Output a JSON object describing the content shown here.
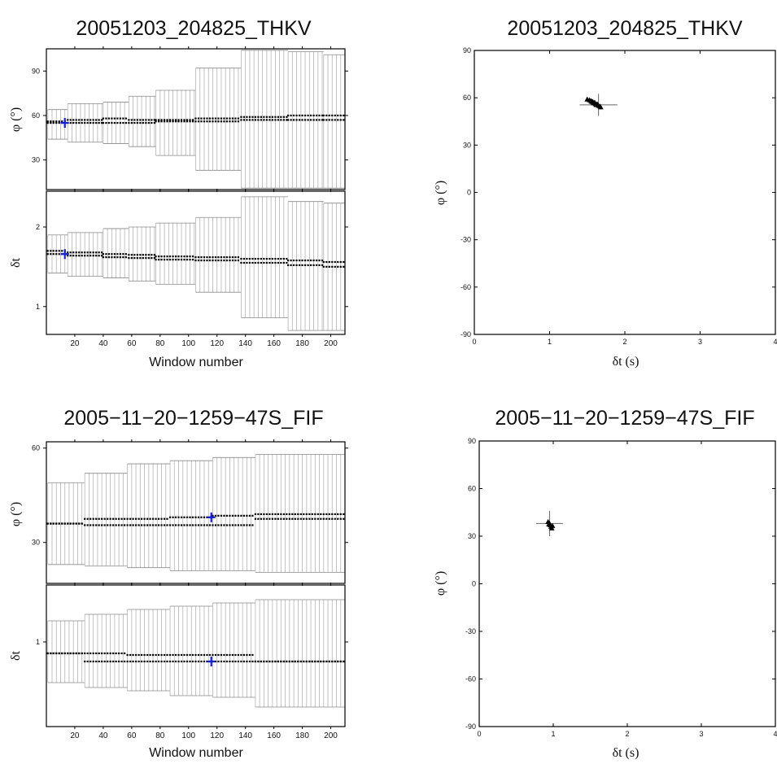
{
  "chart_data": [
    {
      "id": "p1",
      "type": "scatter",
      "title": "20051203_204825_THKV",
      "xlabel": "Window number",
      "xlim": [
        0,
        210
      ],
      "xticks": [
        20,
        40,
        60,
        80,
        100,
        120,
        140,
        160,
        180,
        200
      ],
      "phi": {
        "ylabel": "φ (°)",
        "ylim": [
          10,
          105
        ],
        "yticks": [
          30,
          60,
          90
        ],
        "segments": [
          {
            "x": [
              1,
              15
            ],
            "mean": [
              55,
              56
            ],
            "low": 44,
            "high": 64
          },
          {
            "x": [
              15,
              40
            ],
            "mean": [
              55,
              57
            ],
            "low": 42,
            "high": 68
          },
          {
            "x": [
              40,
              58
            ],
            "mean": [
              55,
              58
            ],
            "low": 41,
            "high": 69
          },
          {
            "x": [
              58,
              77
            ],
            "mean": [
              55,
              57
            ],
            "low": 39,
            "high": 73
          },
          {
            "x": [
              77,
              105
            ],
            "mean": [
              56,
              57
            ],
            "low": 33,
            "high": 77
          },
          {
            "x": [
              105,
              137
            ],
            "mean": [
              56,
              58
            ],
            "low": 23,
            "high": 92
          },
          {
            "x": [
              137,
              170
            ],
            "mean": [
              57,
              59
            ],
            "low": 11,
            "high": 104
          },
          {
            "x": [
              170,
              195
            ],
            "mean": [
              57,
              60
            ],
            "low": 11,
            "high": 103
          },
          {
            "x": [
              195,
              210
            ],
            "mean": [
              57,
              60
            ],
            "low": 11,
            "high": 101
          }
        ],
        "best": {
          "x": 13,
          "y": 55
        }
      },
      "dt": {
        "ylabel": "δt",
        "ylim": [
          0.65,
          2.45
        ],
        "yticks": [
          1,
          2
        ],
        "segments": [
          {
            "x": [
              1,
              15
            ],
            "mean": [
              1.66,
              1.7
            ],
            "low": 1.42,
            "high": 1.9
          },
          {
            "x": [
              15,
              40
            ],
            "mean": [
              1.64,
              1.68
            ],
            "low": 1.38,
            "high": 1.93
          },
          {
            "x": [
              40,
              58
            ],
            "mean": [
              1.62,
              1.66
            ],
            "low": 1.36,
            "high": 1.98
          },
          {
            "x": [
              58,
              77
            ],
            "mean": [
              1.61,
              1.65
            ],
            "low": 1.32,
            "high": 2.0
          },
          {
            "x": [
              77,
              105
            ],
            "mean": [
              1.59,
              1.63
            ],
            "low": 1.28,
            "high": 2.05
          },
          {
            "x": [
              105,
              137
            ],
            "mean": [
              1.58,
              1.62
            ],
            "low": 1.18,
            "high": 2.12
          },
          {
            "x": [
              137,
              170
            ],
            "mean": [
              1.55,
              1.6
            ],
            "low": 0.86,
            "high": 2.38
          },
          {
            "x": [
              170,
              195
            ],
            "mean": [
              1.52,
              1.58
            ],
            "low": 0.7,
            "high": 2.32
          },
          {
            "x": [
              195,
              210
            ],
            "mean": [
              1.5,
              1.56
            ],
            "low": 0.7,
            "high": 2.3
          }
        ],
        "best": {
          "x": 13,
          "y": 1.66
        }
      }
    },
    {
      "id": "p2",
      "type": "scatter",
      "title": "20051203_204825_THKV",
      "xlabel": "δt (s)",
      "ylabel": "φ (°)",
      "xlim": [
        0,
        4
      ],
      "ylim": [
        -90,
        90
      ],
      "xticks": [
        0,
        1,
        2,
        3,
        4
      ],
      "yticks": [
        -90,
        -60,
        -30,
        0,
        30,
        60,
        90
      ],
      "points": [
        [
          1.5,
          59
        ],
        [
          1.53,
          58.5
        ],
        [
          1.55,
          58
        ],
        [
          1.57,
          57.5
        ],
        [
          1.58,
          57
        ],
        [
          1.6,
          57
        ],
        [
          1.61,
          56
        ],
        [
          1.63,
          56
        ],
        [
          1.64,
          55.5
        ],
        [
          1.65,
          55
        ],
        [
          1.67,
          54.5
        ],
        [
          1.68,
          54
        ],
        [
          1.56,
          57.5
        ],
        [
          1.59,
          56.5
        ],
        [
          1.62,
          55.5
        ]
      ],
      "best": {
        "x": 1.65,
        "y": 55.5,
        "xerr": 0.25,
        "yerr": 7
      }
    },
    {
      "id": "p3",
      "type": "scatter",
      "title": "2005−11−20−1259−47S_FIF",
      "xlabel": "Window number",
      "xlim": [
        0,
        210
      ],
      "xticks": [
        20,
        40,
        60,
        80,
        100,
        120,
        140,
        160,
        180,
        200
      ],
      "phi": {
        "ylabel": "φ (°)",
        "ylim": [
          17,
          62
        ],
        "yticks": [
          30,
          60
        ],
        "segments": [
          {
            "x": [
              1,
              27
            ],
            "mean": [
              36,
              36
            ],
            "low": 23,
            "high": 49
          },
          {
            "x": [
              27,
              57
            ],
            "mean": [
              35.5,
              37.5
            ],
            "low": 22.5,
            "high": 52
          },
          {
            "x": [
              57,
              87
            ],
            "mean": [
              35.5,
              37.5
            ],
            "low": 22,
            "high": 55
          },
          {
            "x": [
              87,
              117
            ],
            "mean": [
              35.5,
              38
            ],
            "low": 21,
            "high": 56
          },
          {
            "x": [
              117,
              147
            ],
            "mean": [
              35.5,
              38.5
            ],
            "low": 21,
            "high": 57
          },
          {
            "x": [
              147,
              210
            ],
            "mean": [
              37.5,
              39
            ],
            "low": 20.5,
            "high": 58
          }
        ],
        "best": {
          "x": 116,
          "y": 38
        }
      },
      "dt": {
        "ylabel": "δt",
        "ylim": [
          0.48,
          1.35
        ],
        "yticks": [
          1
        ],
        "segments": [
          {
            "x": [
              1,
              27
            ],
            "mean": [
              0.93,
              0.93
            ],
            "low": 0.75,
            "high": 1.13
          },
          {
            "x": [
              27,
              57
            ],
            "mean": [
              0.88,
              0.93
            ],
            "low": 0.72,
            "high": 1.17
          },
          {
            "x": [
              57,
              87
            ],
            "mean": [
              0.88,
              0.92
            ],
            "low": 0.7,
            "high": 1.2
          },
          {
            "x": [
              87,
              117
            ],
            "mean": [
              0.88,
              0.92
            ],
            "low": 0.67,
            "high": 1.22
          },
          {
            "x": [
              117,
              147
            ],
            "mean": [
              0.88,
              0.92
            ],
            "low": 0.66,
            "high": 1.24
          },
          {
            "x": [
              147,
              210
            ],
            "mean": [
              0.88,
              0.88
            ],
            "low": 0.6,
            "high": 1.26
          }
        ],
        "best": {
          "x": 116,
          "y": 0.88
        }
      }
    },
    {
      "id": "p4",
      "type": "scatter",
      "title": "2005−11−20−1259−47S_FIF",
      "xlabel": "δt (s)",
      "ylabel": "φ (°)",
      "xlim": [
        0,
        4
      ],
      "ylim": [
        -90,
        90
      ],
      "xticks": [
        0,
        1,
        2,
        3,
        4
      ],
      "yticks": [
        -90,
        -60,
        -30,
        0,
        30,
        60,
        90
      ],
      "points": [
        [
          0.93,
          39
        ],
        [
          0.95,
          38
        ],
        [
          0.96,
          37
        ],
        [
          0.97,
          36
        ],
        [
          0.98,
          35
        ],
        [
          0.94,
          37.5
        ],
        [
          0.99,
          36.5
        ]
      ],
      "best": {
        "x": 0.95,
        "y": 38,
        "xerr": 0.18,
        "yerr": 8
      }
    }
  ]
}
